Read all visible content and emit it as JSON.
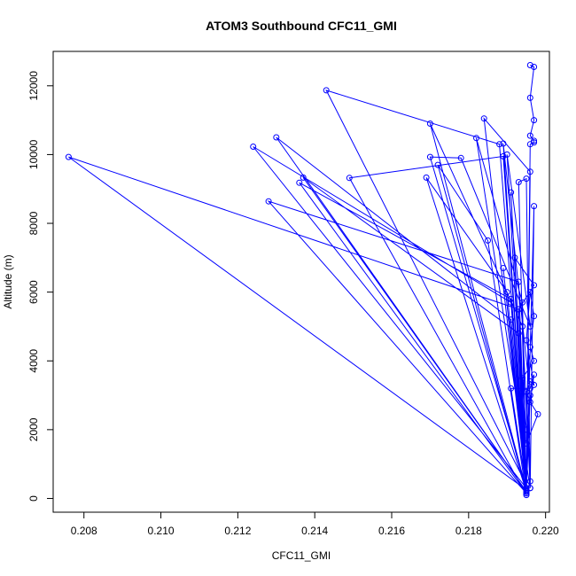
{
  "chart_data": {
    "type": "line",
    "title": "ATOM3 Southbound CFC11_GMI",
    "xlabel": "CFC11_GMI",
    "ylabel": "Altitude (m)",
    "xlim": [
      0.2072,
      0.2201
    ],
    "ylim": [
      -400,
      13000
    ],
    "x_ticks": [
      0.208,
      0.21,
      0.212,
      0.214,
      0.216,
      0.218,
      0.22
    ],
    "x_tick_labels": [
      "0.208",
      "0.210",
      "0.212",
      "0.214",
      "0.216",
      "0.218",
      "0.220"
    ],
    "y_ticks": [
      0,
      2000,
      4000,
      6000,
      8000,
      10000,
      12000
    ],
    "y_tick_labels": [
      "0",
      "2000",
      "4000",
      "6000",
      "8000",
      "10000",
      "12000"
    ],
    "grid": false,
    "series": [
      {
        "color": "#0000ff",
        "marker": "open-circle",
        "line": true,
        "points": [
          {
            "x": 0.2196,
            "y": 12600
          },
          {
            "x": 0.2197,
            "y": 12550
          },
          {
            "x": 0.2196,
            "y": 11650
          },
          {
            "x": 0.2197,
            "y": 11000
          },
          {
            "x": 0.2196,
            "y": 10550
          },
          {
            "x": 0.2197,
            "y": 10400
          },
          {
            "x": 0.2197,
            "y": 10350
          },
          {
            "x": 0.2196,
            "y": 10300
          },
          {
            "x": 0.2195,
            "y": 400
          },
          {
            "x": 0.2143,
            "y": 11870
          },
          {
            "x": 0.2188,
            "y": 10300
          },
          {
            "x": 0.2195,
            "y": 300
          },
          {
            "x": 0.2184,
            "y": 11050
          },
          {
            "x": 0.2196,
            "y": 9500
          },
          {
            "x": 0.2195,
            "y": 250
          },
          {
            "x": 0.217,
            "y": 10900
          },
          {
            "x": 0.2194,
            "y": 5000
          },
          {
            "x": 0.2196,
            "y": 300
          },
          {
            "x": 0.2182,
            "y": 10480
          },
          {
            "x": 0.2194,
            "y": 5700
          },
          {
            "x": 0.2195,
            "y": 200
          },
          {
            "x": 0.2189,
            "y": 10320
          },
          {
            "x": 0.2196,
            "y": 3000
          },
          {
            "x": 0.2195,
            "y": 200
          },
          {
            "x": 0.213,
            "y": 10500
          },
          {
            "x": 0.2191,
            "y": 5200
          },
          {
            "x": 0.2195,
            "y": 300
          },
          {
            "x": 0.2124,
            "y": 10230
          },
          {
            "x": 0.2191,
            "y": 5700
          },
          {
            "x": 0.2195,
            "y": 250
          },
          {
            "x": 0.2076,
            "y": 9930
          },
          {
            "x": 0.2193,
            "y": 5500
          },
          {
            "x": 0.2195,
            "y": 300
          },
          {
            "x": 0.217,
            "y": 9930
          },
          {
            "x": 0.2178,
            "y": 9900
          },
          {
            "x": 0.2196,
            "y": 5000
          },
          {
            "x": 0.219,
            "y": 10000
          },
          {
            "x": 0.2195,
            "y": 200
          },
          {
            "x": 0.2172,
            "y": 9700
          },
          {
            "x": 0.2185,
            "y": 7500
          },
          {
            "x": 0.2195,
            "y": 100
          },
          {
            "x": 0.2149,
            "y": 9320
          },
          {
            "x": 0.2189,
            "y": 9950
          },
          {
            "x": 0.2195,
            "y": 200
          },
          {
            "x": 0.2137,
            "y": 9330
          },
          {
            "x": 0.2193,
            "y": 4800
          },
          {
            "x": 0.2195,
            "y": 150
          },
          {
            "x": 0.2136,
            "y": 9180
          },
          {
            "x": 0.2191,
            "y": 5800
          },
          {
            "x": 0.2195,
            "y": 200
          },
          {
            "x": 0.2169,
            "y": 9330
          },
          {
            "x": 0.219,
            "y": 6000
          },
          {
            "x": 0.2195,
            "y": 150
          },
          {
            "x": 0.2128,
            "y": 8640
          },
          {
            "x": 0.2193,
            "y": 6300
          },
          {
            "x": 0.2195,
            "y": 250
          },
          {
            "x": 0.2193,
            "y": 9200
          },
          {
            "x": 0.2195,
            "y": 9300
          },
          {
            "x": 0.2196,
            "y": 300
          },
          {
            "x": 0.2197,
            "y": 8500
          },
          {
            "x": 0.2195,
            "y": 200
          },
          {
            "x": 0.2189,
            "y": 6700
          },
          {
            "x": 0.2195,
            "y": 150
          },
          {
            "x": 0.2191,
            "y": 8900
          },
          {
            "x": 0.2195,
            "y": 200
          },
          {
            "x": 0.2192,
            "y": 7000
          },
          {
            "x": 0.2197,
            "y": 6200
          },
          {
            "x": 0.2193,
            "y": 5500
          },
          {
            "x": 0.2195,
            "y": 300
          },
          {
            "x": 0.2191,
            "y": 3200
          },
          {
            "x": 0.2196,
            "y": 3200
          },
          {
            "x": 0.2197,
            "y": 3600
          },
          {
            "x": 0.2196,
            "y": 2800
          },
          {
            "x": 0.2198,
            "y": 2450
          },
          {
            "x": 0.2195,
            "y": 1600
          },
          {
            "x": 0.2195,
            "y": 2000
          },
          {
            "x": 0.2194,
            "y": 3500
          },
          {
            "x": 0.2197,
            "y": 4000
          },
          {
            "x": 0.2196,
            "y": 4400
          },
          {
            "x": 0.2197,
            "y": 5300
          },
          {
            "x": 0.2196,
            "y": 6000
          },
          {
            "x": 0.2195,
            "y": 4600
          },
          {
            "x": 0.2197,
            "y": 3300
          },
          {
            "x": 0.2196,
            "y": 3400
          },
          {
            "x": 0.2195,
            "y": 3100
          },
          {
            "x": 0.2196,
            "y": 500
          }
        ]
      }
    ]
  }
}
